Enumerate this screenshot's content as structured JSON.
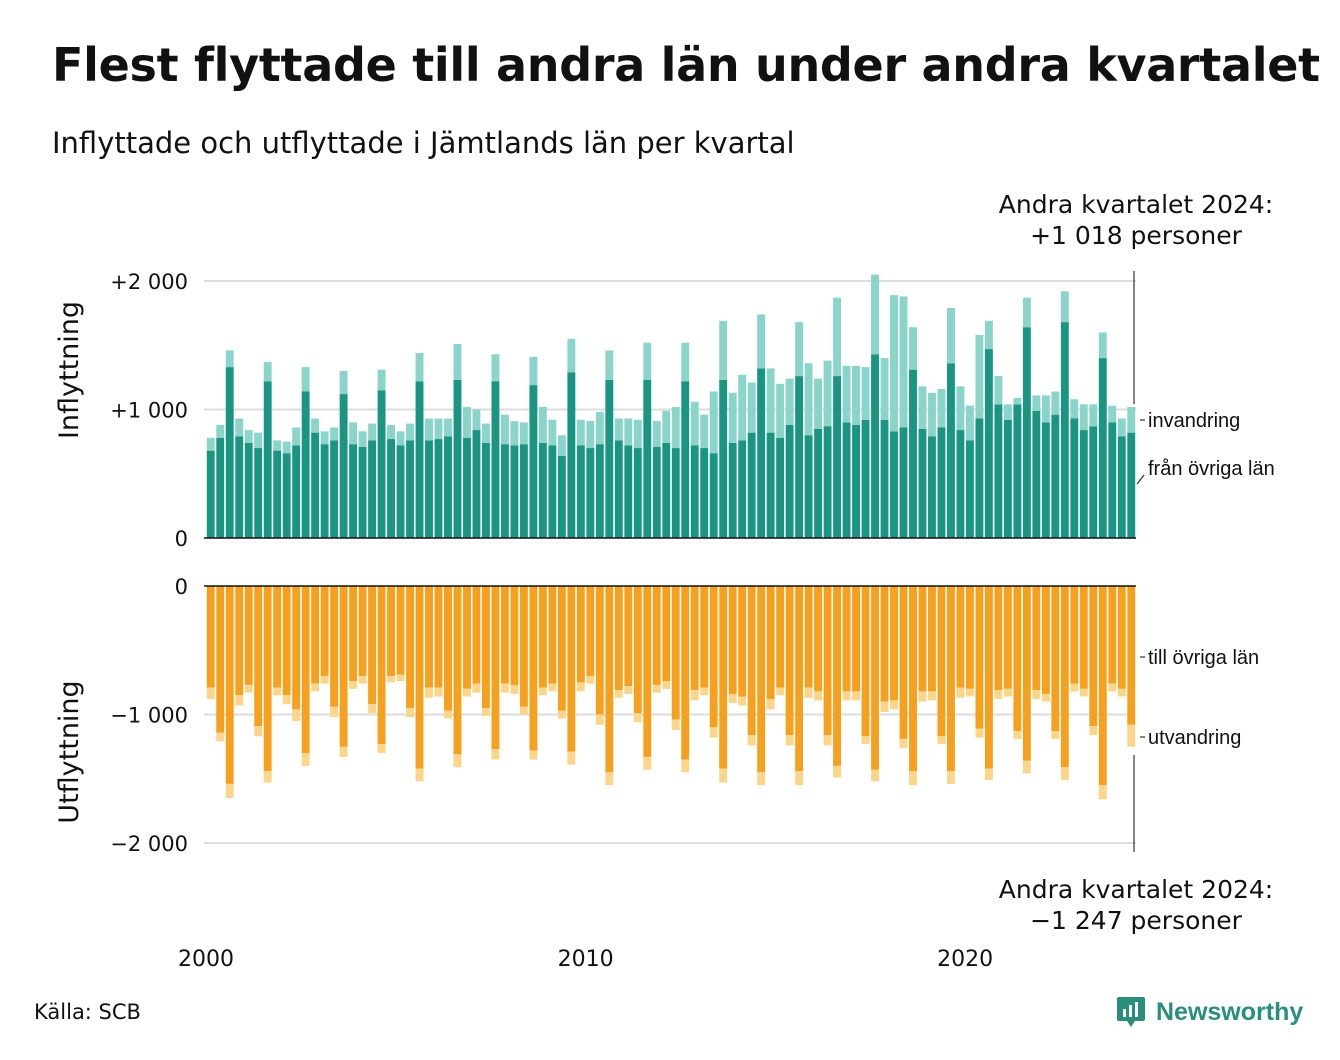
{
  "title": "Flest flyttade till andra län under andra kvartalet",
  "subtitle": "Inflyttade och utflyttade i Jämtlands län per kvartal",
  "source": "Källa: SCB",
  "brand": {
    "name": "Newsworthy",
    "color": "#2a8f7a"
  },
  "colors": {
    "in_domestic": "#1a9582",
    "in_immigration": "#8bd4c9",
    "out_domestic": "#f5a01e",
    "out_emigration": "#fbd58a",
    "grid": "#dddddd"
  },
  "chart_data": {
    "type": "bar",
    "stacked": true,
    "x_start": "2000 Q1",
    "x_end": "2024 Q2",
    "x_ticks": [
      2000,
      2010,
      2020
    ],
    "panels": [
      {
        "name": "inflow",
        "ylabel": "Inflyttning",
        "ylim": [
          0,
          2000
        ],
        "y_ticks": [
          0,
          1000,
          2000
        ],
        "y_tick_labels": [
          "0",
          "+1 000",
          "+2 000"
        ],
        "annotation": [
          "Andra kvartalet 2024:",
          "+1 018 personer"
        ],
        "series": [
          {
            "name": "från övriga län",
            "color_key": "in_domestic",
            "values": [
              680,
              780,
              1330,
              790,
              740,
              700,
              1220,
              680,
              660,
              720,
              1140,
              820,
              730,
              760,
              1120,
              730,
              710,
              760,
              1150,
              770,
              720,
              760,
              1220,
              760,
              770,
              790,
              1230,
              780,
              840,
              740,
              1220,
              730,
              720,
              730,
              1190,
              740,
              720,
              640,
              1290,
              720,
              700,
              730,
              1230,
              760,
              720,
              700,
              1230,
              710,
              740,
              700,
              1220,
              720,
              700,
              660,
              1230,
              740,
              760,
              820,
              1320,
              820,
              780,
              880,
              1260,
              800,
              850,
              870,
              1260,
              900,
              880,
              920,
              1430,
              920,
              830,
              860,
              1310,
              850,
              790,
              860,
              1360,
              840,
              760,
              930,
              1470,
              1040,
              920,
              1040,
              1640,
              990,
              900,
              960,
              1680,
              930,
              840,
              870,
              1400,
              900,
              790,
              820
            ]
          },
          {
            "name": "invandring",
            "color_key": "in_immigration",
            "values": [
              100,
              100,
              130,
              140,
              100,
              120,
              150,
              80,
              90,
              140,
              190,
              110,
              100,
              100,
              180,
              170,
              120,
              130,
              160,
              110,
              110,
              130,
              220,
              170,
              160,
              140,
              280,
              240,
              160,
              150,
              210,
              230,
              190,
              170,
              220,
              280,
              200,
              160,
              260,
              200,
              210,
              250,
              230,
              170,
              210,
              220,
              290,
              200,
              250,
              320,
              300,
              340,
              260,
              480,
              460,
              390,
              510,
              390,
              420,
              500,
              420,
              360,
              420,
              560,
              390,
              510,
              610,
              440,
              460,
              410,
              620,
              480,
              1060,
              1020,
              330,
              330,
              340,
              300,
              430,
              340,
              270,
              650,
              220,
              220,
              120,
              50,
              230,
              120,
              210,
              180,
              240,
              150,
              200,
              170,
              200,
              130,
              140,
              200
            ]
          }
        ]
      },
      {
        "name": "outflow",
        "ylabel": "Utflyttning",
        "ylim": [
          -2000,
          0
        ],
        "y_ticks": [
          -2000,
          -1000,
          0
        ],
        "y_tick_labels": [
          "−2 000",
          "−1 000",
          "0"
        ],
        "annotation": [
          "Andra kvartalet 2024:",
          "−1 247 personer"
        ],
        "series": [
          {
            "name": "till övriga län",
            "color_key": "out_domestic",
            "values": [
              -790,
              -1140,
              -1540,
              -850,
              -770,
              -1090,
              -1440,
              -790,
              -850,
              -960,
              -1300,
              -760,
              -700,
              -940,
              -1250,
              -740,
              -700,
              -920,
              -1230,
              -700,
              -690,
              -950,
              -1420,
              -790,
              -790,
              -970,
              -1310,
              -800,
              -760,
              -950,
              -1270,
              -760,
              -770,
              -940,
              -1280,
              -790,
              -760,
              -970,
              -1290,
              -750,
              -700,
              -1000,
              -1450,
              -810,
              -780,
              -990,
              -1330,
              -770,
              -740,
              -1040,
              -1350,
              -810,
              -790,
              -1100,
              -1420,
              -840,
              -860,
              -1160,
              -1450,
              -880,
              -790,
              -1160,
              -1440,
              -790,
              -820,
              -1160,
              -1400,
              -820,
              -820,
              -1170,
              -1430,
              -900,
              -890,
              -1190,
              -1440,
              -820,
              -820,
              -1170,
              -1440,
              -790,
              -800,
              -1110,
              -1420,
              -810,
              -800,
              -1130,
              -1360,
              -810,
              -840,
              -1130,
              -1410,
              -760,
              -800,
              -1090,
              -1550,
              -760,
              -800,
              -1080
            ]
          },
          {
            "name": "utvandring",
            "color_key": "out_emigration",
            "values": [
              -90,
              -70,
              -110,
              -80,
              -60,
              -80,
              -90,
              -60,
              -70,
              -90,
              -100,
              -60,
              -60,
              -80,
              -80,
              -60,
              -60,
              -70,
              -70,
              -50,
              -50,
              -70,
              -100,
              -80,
              -70,
              -60,
              -100,
              -60,
              -70,
              -60,
              -80,
              -70,
              -70,
              -60,
              -70,
              -60,
              -60,
              -60,
              -100,
              -70,
              -60,
              -80,
              -100,
              -60,
              -60,
              -70,
              -100,
              -60,
              -60,
              -80,
              -100,
              -80,
              -60,
              -80,
              -110,
              -70,
              -70,
              -80,
              -100,
              -80,
              -60,
              -80,
              -110,
              -80,
              -70,
              -80,
              -90,
              -70,
              -70,
              -60,
              -90,
              -80,
              -70,
              -70,
              -110,
              -80,
              -70,
              -60,
              -100,
              -80,
              -60,
              -70,
              -90,
              -70,
              -60,
              -60,
              -100,
              -70,
              -60,
              -60,
              -100,
              -60,
              -60,
              -70,
              -110,
              -60,
              -60,
              -170
            ]
          }
        ]
      }
    ],
    "legend_inflow": [
      "invandring",
      "från övriga län"
    ],
    "legend_outflow": [
      "till övriga län",
      "utvandring"
    ]
  }
}
